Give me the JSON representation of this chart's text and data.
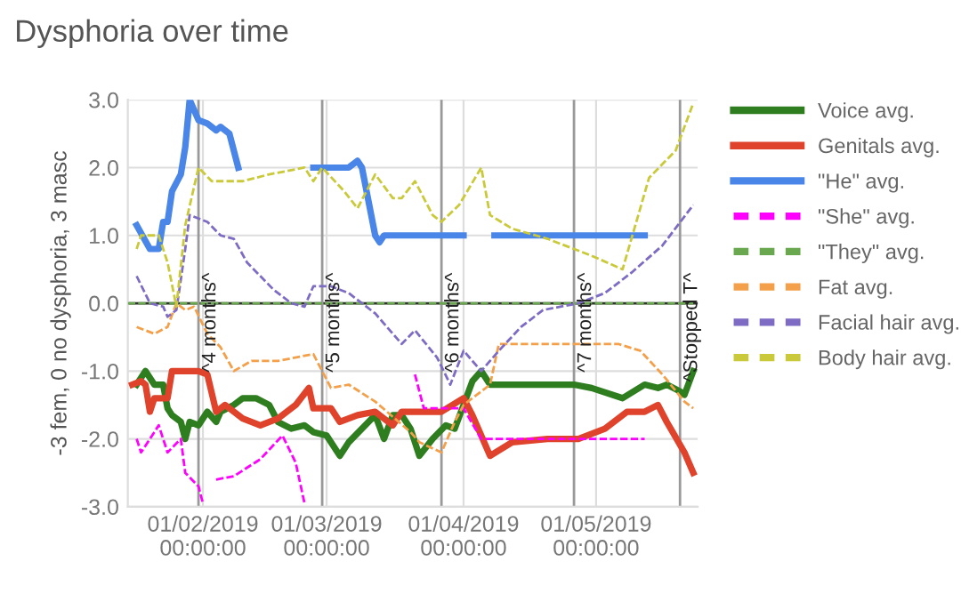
{
  "chart_data": {
    "type": "line",
    "title": "Dysphoria over time",
    "ylabel": "-3 fem, 0 no dysphoria, 3 masc",
    "xlim": [
      "2019-01-15",
      "2019-05-24"
    ],
    "ylim": [
      -3,
      3
    ],
    "xticks": [
      {
        "value": "2019-02-01",
        "label": "01/02/2019\n00:00:00"
      },
      {
        "value": "2019-03-01",
        "label": "01/03/2019\n00:00:00"
      },
      {
        "value": "2019-04-01",
        "label": "01/04/2019\n00:00:00"
      },
      {
        "value": "2019-05-01",
        "label": "01/05/2019\n00:00:00"
      }
    ],
    "yticks": [
      {
        "value": -3,
        "label": "-3.0"
      },
      {
        "value": -2,
        "label": "-2.0"
      },
      {
        "value": -1,
        "label": "-1.0"
      },
      {
        "value": 0,
        "label": "0.0"
      },
      {
        "value": 1,
        "label": "1.0"
      },
      {
        "value": 2,
        "label": "2.0"
      },
      {
        "value": 3,
        "label": "3.0"
      }
    ],
    "grid": true,
    "legend": "right",
    "ref_lines": [
      {
        "axis": "y",
        "value": 0,
        "color": "#333333",
        "line_style": "solid"
      },
      {
        "axis": "x",
        "value": "2019-01-31",
        "label": "^4 months^",
        "color": "#999999"
      },
      {
        "axis": "x",
        "value": "2019-02-28",
        "label": "^5 months^",
        "color": "#999999"
      },
      {
        "axis": "x",
        "value": "2019-03-27",
        "label": "^6 months^",
        "color": "#999999"
      },
      {
        "axis": "x",
        "value": "2019-04-26",
        "label": "^7 months^",
        "color": "#999999"
      },
      {
        "axis": "x",
        "value": "2019-05-20",
        "label": "^Stopped T^",
        "color": "#999999"
      }
    ],
    "series": [
      {
        "name": "Voice avg.",
        "color": "#2e7d1f",
        "line_style": "solid",
        "x": [
          "2019-01-17",
          "2019-01-19",
          "2019-01-21",
          "2019-01-23",
          "2019-01-24",
          "2019-01-25",
          "2019-01-27",
          "2019-01-28",
          "2019-01-29",
          "2019-01-31",
          "2019-02-02",
          "2019-02-04",
          "2019-02-05",
          "2019-02-08",
          "2019-02-10",
          "2019-02-13",
          "2019-02-16",
          "2019-02-18",
          "2019-02-21",
          "2019-02-24",
          "2019-02-26",
          "2019-03-01",
          "2019-03-04",
          "2019-03-06",
          "2019-03-12",
          "2019-03-14",
          "2019-03-16",
          "2019-03-18",
          "2019-03-20",
          "2019-03-22",
          "2019-03-25",
          "2019-03-28",
          "2019-03-30",
          "2019-04-01",
          "2019-04-03",
          "2019-04-05",
          "2019-04-07",
          "2019-04-17",
          "2019-04-26",
          "2019-04-30",
          "2019-05-07",
          "2019-05-12",
          "2019-05-15",
          "2019-05-17",
          "2019-05-20",
          "2019-05-21",
          "2019-05-23"
        ],
        "values": [
          -1.2,
          -1.0,
          -1.2,
          -1.2,
          -1.55,
          -1.65,
          -1.75,
          -2.0,
          -1.75,
          -1.8,
          -1.6,
          -1.75,
          -1.6,
          -1.5,
          -1.4,
          -1.4,
          -1.5,
          -1.75,
          -1.85,
          -1.8,
          -1.9,
          -1.95,
          -2.25,
          -2.05,
          -1.65,
          -2.0,
          -1.65,
          -1.65,
          -1.85,
          -2.25,
          -2.0,
          -1.8,
          -1.85,
          -1.5,
          -1.15,
          -1.0,
          -1.2,
          -1.2,
          -1.2,
          -1.25,
          -1.4,
          -1.2,
          -1.25,
          -1.2,
          -1.3,
          -1.35,
          -1.0
        ]
      },
      {
        "name": "Genitals avg.",
        "color": "#e0432b",
        "line_style": "solid",
        "x": [
          "2019-01-16",
          "2019-01-18",
          "2019-01-19",
          "2019-01-20",
          "2019-01-21",
          "2019-01-24",
          "2019-01-25",
          "2019-01-31",
          "2019-02-02",
          "2019-02-04",
          "2019-02-06",
          "2019-02-10",
          "2019-02-14",
          "2019-02-18",
          "2019-02-22",
          "2019-02-25",
          "2019-02-26",
          "2019-03-02",
          "2019-03-04",
          "2019-03-08",
          "2019-03-12",
          "2019-03-16",
          "2019-03-18",
          "2019-03-27",
          "2019-04-01",
          "2019-04-03",
          "2019-04-07",
          "2019-04-12",
          "2019-04-20",
          "2019-04-27",
          "2019-05-03",
          "2019-05-08",
          "2019-05-12",
          "2019-05-15",
          "2019-05-17",
          "2019-05-21",
          "2019-05-23"
        ],
        "values": [
          -1.2,
          -1.15,
          -1.2,
          -1.6,
          -1.4,
          -1.4,
          -1.0,
          -1.0,
          -1.05,
          -1.6,
          -1.5,
          -1.7,
          -1.8,
          -1.7,
          -1.5,
          -1.25,
          -1.55,
          -1.55,
          -1.75,
          -1.65,
          -1.6,
          -1.8,
          -1.6,
          -1.6,
          -1.4,
          -1.65,
          -2.25,
          -2.05,
          -2.0,
          -2.0,
          -1.85,
          -1.6,
          -1.6,
          -1.5,
          -1.75,
          -2.2,
          -2.5
        ]
      },
      {
        "name": "\"He\" avg.",
        "color": "#4a86e8",
        "line_style": "solid",
        "x": [
          "2019-01-17",
          "2019-01-20",
          "2019-01-22",
          "2019-01-23",
          "2019-01-24",
          "2019-01-25",
          "2019-01-27",
          "2019-01-28",
          "2019-01-29",
          "2019-01-31",
          "2019-02-02",
          "2019-02-04",
          "2019-02-05",
          "2019-02-07",
          "2019-02-09",
          "2019-02-17",
          "2019-02-26",
          "2019-03-06",
          "2019-03-08",
          "2019-03-09",
          "2019-03-12",
          "2019-03-13",
          "2019-03-14",
          "2019-04-01",
          "2019-04-04",
          "2019-04-08",
          "2019-05-12"
        ],
        "values": [
          1.15,
          0.8,
          0.8,
          1.2,
          1.2,
          1.65,
          1.9,
          2.3,
          3.0,
          2.7,
          2.65,
          2.55,
          2.6,
          2.5,
          2.0,
          null,
          2.0,
          2.0,
          2.1,
          2.0,
          1.0,
          0.9,
          1.0,
          1.0,
          null,
          1.0,
          1.0
        ]
      },
      {
        "name": "\"She\" avg.",
        "color": "#ff00ff",
        "line_style": "dashed",
        "x": [
          "2019-01-17",
          "2019-01-18",
          "2019-01-21",
          "2019-01-22",
          "2019-01-24",
          "2019-01-27",
          "2019-01-28",
          "2019-01-31",
          "2019-02-01",
          "2019-02-03",
          "2019-02-04",
          "2019-02-08",
          "2019-02-14",
          "2019-02-19",
          "2019-02-22",
          "2019-02-24",
          "2019-03-10",
          "2019-03-21",
          "2019-03-23",
          "2019-04-01",
          "2019-04-05",
          "2019-05-12"
        ],
        "values": [
          -2.0,
          -2.2,
          -1.9,
          -1.8,
          -2.2,
          -2.0,
          -2.5,
          -2.7,
          -2.95,
          null,
          -2.6,
          -2.55,
          -2.3,
          -1.95,
          -2.35,
          -2.95,
          null,
          -1.05,
          -1.55,
          -1.55,
          -2.0,
          -2.0
        ]
      },
      {
        "name": "\"They\" avg.",
        "color": "#6aa84f",
        "line_style": "dashed",
        "x": [
          "2019-01-15",
          "2019-05-23"
        ],
        "values": [
          0.0,
          0.0
        ]
      },
      {
        "name": "Fat avg.",
        "color": "#f4a04a",
        "line_style": "dashed",
        "x": [
          "2019-01-17",
          "2019-01-21",
          "2019-01-24",
          "2019-01-26",
          "2019-01-28",
          "2019-01-30",
          "2019-02-02",
          "2019-02-05",
          "2019-02-08",
          "2019-02-12",
          "2019-02-18",
          "2019-02-26",
          "2019-03-02",
          "2019-03-06",
          "2019-03-12",
          "2019-03-20",
          "2019-03-22",
          "2019-03-27",
          "2019-03-30",
          "2019-04-01",
          "2019-04-07",
          "2019-04-09",
          "2019-04-12",
          "2019-05-06",
          "2019-05-11",
          "2019-05-16",
          "2019-05-21",
          "2019-05-23"
        ],
        "values": [
          -0.35,
          -0.45,
          -0.35,
          0.0,
          -0.1,
          -0.05,
          -0.45,
          -0.65,
          -1.0,
          -0.85,
          -0.85,
          -0.75,
          -1.25,
          -1.2,
          -1.45,
          -1.9,
          -2.05,
          -2.2,
          -1.75,
          -1.5,
          -1.2,
          -0.6,
          -0.6,
          -0.6,
          -0.7,
          -1.05,
          -1.45,
          -1.55
        ]
      },
      {
        "name": "Facial hair avg.",
        "color": "#7e6bc4",
        "line_style": "dashed",
        "x": [
          "2019-01-17",
          "2019-01-20",
          "2019-01-23",
          "2019-01-24",
          "2019-01-26",
          "2019-01-28",
          "2019-01-29",
          "2019-02-02",
          "2019-02-05",
          "2019-02-08",
          "2019-02-11",
          "2019-02-17",
          "2019-02-21",
          "2019-02-24",
          "2019-02-26",
          "2019-03-02",
          "2019-03-06",
          "2019-03-12",
          "2019-03-16",
          "2019-03-18",
          "2019-03-21",
          "2019-03-26",
          "2019-03-29",
          "2019-04-01",
          "2019-04-05",
          "2019-04-09",
          "2019-04-14",
          "2019-04-19",
          "2019-04-27",
          "2019-05-03",
          "2019-05-09",
          "2019-05-16",
          "2019-05-23"
        ],
        "values": [
          0.4,
          0.0,
          -0.05,
          -0.2,
          -0.1,
          0.8,
          1.3,
          1.2,
          1.0,
          0.95,
          0.6,
          0.2,
          0.0,
          -0.05,
          0.25,
          0.25,
          0.15,
          -0.15,
          -0.45,
          -0.6,
          -0.4,
          -0.8,
          -1.2,
          -0.7,
          -1.0,
          -0.7,
          -0.35,
          -0.1,
          0.0,
          0.15,
          0.45,
          0.85,
          1.45
        ]
      },
      {
        "name": "Body hair avg.",
        "color": "#c9c93a",
        "line_style": "dashed",
        "x": [
          "2019-01-17",
          "2019-01-18",
          "2019-01-22",
          "2019-01-24",
          "2019-01-26",
          "2019-01-28",
          "2019-01-31",
          "2019-02-03",
          "2019-02-10",
          "2019-02-16",
          "2019-02-24",
          "2019-02-26",
          "2019-02-28",
          "2019-03-05",
          "2019-03-08",
          "2019-03-12",
          "2019-03-16",
          "2019-03-18",
          "2019-03-21",
          "2019-03-25",
          "2019-03-27",
          "2019-03-31",
          "2019-04-05",
          "2019-04-07",
          "2019-04-12",
          "2019-04-20",
          "2019-04-30",
          "2019-05-07",
          "2019-05-09",
          "2019-05-13",
          "2019-05-19",
          "2019-05-23"
        ],
        "values": [
          0.8,
          1.0,
          1.0,
          0.6,
          -0.05,
          1.15,
          2.0,
          1.8,
          1.8,
          1.9,
          2.0,
          1.8,
          2.0,
          1.65,
          1.4,
          1.9,
          1.55,
          1.55,
          1.8,
          1.3,
          1.2,
          1.45,
          2.0,
          1.3,
          1.1,
          0.95,
          0.7,
          0.5,
          0.95,
          1.85,
          2.25,
          2.95
        ]
      }
    ]
  }
}
